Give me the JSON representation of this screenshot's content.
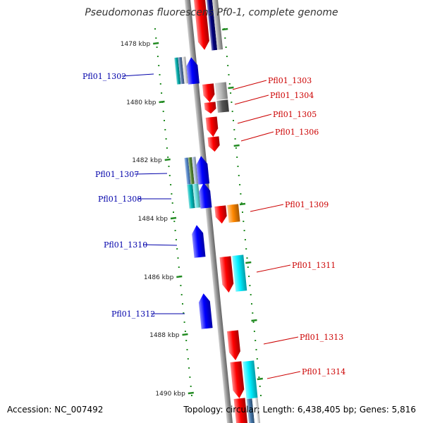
{
  "title": "Pseudomonas fluorescens Pf0-1, complete genome",
  "footer": {
    "accession": "Accession: NC_007492",
    "summary": "Topology: circular; Length: 6,438,405 bp; Genes: 5,816"
  },
  "colors": {
    "forward_strand": "#ff0000",
    "reverse_strand": "#0000ff",
    "backbone": "#999999",
    "ticks": "#228b22",
    "label_reverse": "#0000aa",
    "label_forward": "#cc0000"
  },
  "scale_labels": [
    "1478 kbp",
    "1480 kbp",
    "1482 kbp",
    "1484 kbp",
    "1486 kbp",
    "1488 kbp",
    "1490 kbp"
  ],
  "genes": [
    {
      "name": "Pfl01_1302",
      "strand": "reverse"
    },
    {
      "name": "Pfl01_1303",
      "strand": "forward"
    },
    {
      "name": "Pfl01_1304",
      "strand": "forward"
    },
    {
      "name": "Pfl01_1305",
      "strand": "forward"
    },
    {
      "name": "Pfl01_1306",
      "strand": "forward"
    },
    {
      "name": "Pfl01_1307",
      "strand": "reverse"
    },
    {
      "name": "Pfl01_1308",
      "strand": "reverse"
    },
    {
      "name": "Pfl01_1309",
      "strand": "forward"
    },
    {
      "name": "Pfl01_1310",
      "strand": "reverse"
    },
    {
      "name": "Pfl01_1311",
      "strand": "forward"
    },
    {
      "name": "Pfl01_1312",
      "strand": "reverse"
    },
    {
      "name": "Pfl01_1313",
      "strand": "forward"
    },
    {
      "name": "Pfl01_1314",
      "strand": "forward"
    }
  ]
}
